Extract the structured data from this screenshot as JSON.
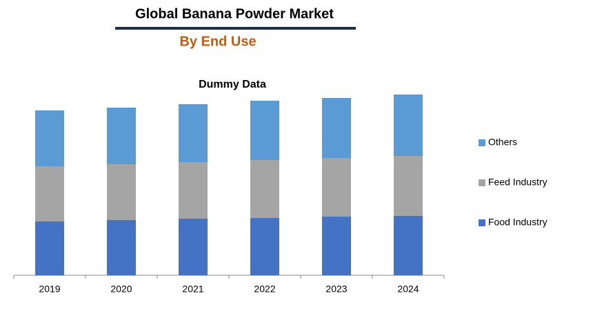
{
  "chart_data": {
    "type": "stacked-bar",
    "title": "Global Banana Powder Market",
    "subtitle": "By End Use",
    "chart_title": "Dummy Data",
    "categories": [
      "2019",
      "2020",
      "2021",
      "2022",
      "2023",
      "2024"
    ],
    "series": [
      {
        "name": "Food Industry",
        "color": "#4472c4",
        "values": [
          78,
          80,
          82,
          83,
          85,
          86
        ]
      },
      {
        "name": "Feed Industry",
        "color": "#a5a5a5",
        "values": [
          80,
          81,
          82,
          84,
          85,
          87
        ]
      },
      {
        "name": "Others",
        "color": "#5b9bd5",
        "values": [
          81,
          82,
          84,
          86,
          87,
          89
        ]
      }
    ],
    "ylim": [
      0,
      270
    ],
    "legend": "right"
  }
}
